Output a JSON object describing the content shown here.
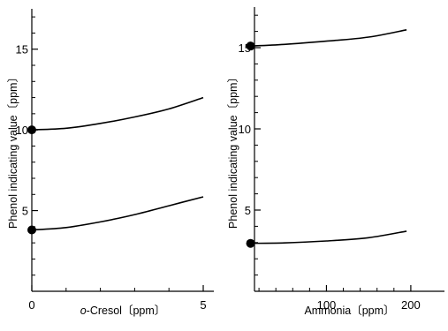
{
  "chart_data": [
    {
      "type": "line",
      "xlabel_prefix": "o",
      "xlabel_rest": "-Cresol〔ppm〕",
      "ylabel": "Phenol indicating value〔ppm〕",
      "xlim": [
        0,
        5
      ],
      "ylim": [
        0,
        17.5
      ],
      "x_ticks": [
        0,
        5
      ],
      "x_minor_ticks": [
        1,
        2,
        3,
        4
      ],
      "y_ticks": [
        5,
        10,
        15
      ],
      "y_minor_ticks": [
        1,
        2,
        3,
        4,
        6,
        7,
        8,
        9,
        11,
        12,
        13,
        14,
        16,
        17
      ],
      "grid": false,
      "series": [
        {
          "x": [
            0,
            1,
            2,
            3,
            4,
            5
          ],
          "y": [
            10.0,
            10.1,
            10.4,
            10.8,
            11.3,
            12.0
          ],
          "start_marker": true
        },
        {
          "x": [
            0,
            1,
            2,
            3,
            4,
            5
          ],
          "y": [
            3.8,
            3.95,
            4.3,
            4.75,
            5.3,
            5.85
          ],
          "start_marker": true
        }
      ]
    },
    {
      "type": "line",
      "xlabel": "Ammonia〔ppm〕",
      "ylabel": "Phenol indicating value〔ppm〕",
      "xlim": [
        0,
        220
      ],
      "ylim": [
        0,
        17.5
      ],
      "x_ticks": [
        100,
        200
      ],
      "x_minor_ticks": [
        20,
        40,
        60,
        80,
        120,
        140,
        160,
        180
      ],
      "y_ticks": [
        5,
        10,
        15
      ],
      "y_minor_ticks": [
        1,
        2,
        3,
        4,
        6,
        7,
        8,
        9,
        11,
        12,
        13,
        14,
        16,
        17
      ],
      "grid": false,
      "series": [
        {
          "x": [
            10,
            50,
            100,
            150,
            195
          ],
          "y": [
            15.1,
            15.2,
            15.4,
            15.65,
            16.1
          ],
          "start_marker": true
        },
        {
          "x": [
            10,
            50,
            100,
            150,
            195
          ],
          "y": [
            2.95,
            2.98,
            3.1,
            3.3,
            3.7
          ],
          "start_marker": true
        }
      ]
    }
  ]
}
